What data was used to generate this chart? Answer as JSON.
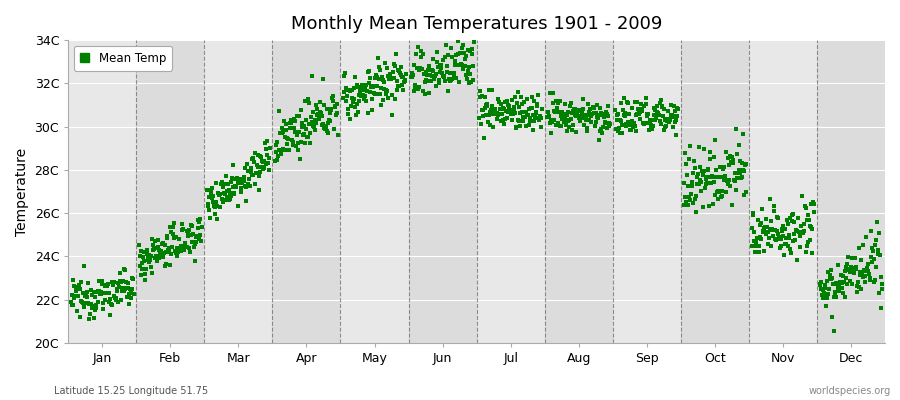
{
  "title": "Monthly Mean Temperatures 1901 - 2009",
  "ylabel": "Temperature",
  "subtitle": "Latitude 15.25 Longitude 51.75",
  "watermark": "worldspecies.org",
  "ylim": [
    20,
    34
  ],
  "yticks": [
    20,
    22,
    24,
    26,
    28,
    30,
    32,
    34
  ],
  "ytick_labels": [
    "20C",
    "22C",
    "24C",
    "26C",
    "28C",
    "30C",
    "32C",
    "34C"
  ],
  "months": [
    "Jan",
    "Feb",
    "Mar",
    "Apr",
    "May",
    "Jun",
    "Jul",
    "Aug",
    "Sep",
    "Oct",
    "Nov",
    "Dec"
  ],
  "dot_color": "#008000",
  "bg_color": "#e8e8e8",
  "fig_bg_color": "#ffffff",
  "legend_label": "Mean Temp",
  "monthly_means": [
    22.0,
    23.8,
    26.5,
    29.2,
    31.3,
    32.2,
    30.8,
    30.5,
    30.3,
    27.2,
    24.8,
    22.5
  ],
  "monthly_trends": [
    0.005,
    0.012,
    0.018,
    0.015,
    0.01,
    0.008,
    -0.002,
    -0.001,
    0.003,
    0.01,
    0.008,
    0.01
  ],
  "monthly_noise": [
    0.45,
    0.45,
    0.45,
    0.55,
    0.55,
    0.6,
    0.45,
    0.4,
    0.45,
    0.75,
    0.65,
    0.65
  ],
  "n_years": 109,
  "start_year": 1901
}
